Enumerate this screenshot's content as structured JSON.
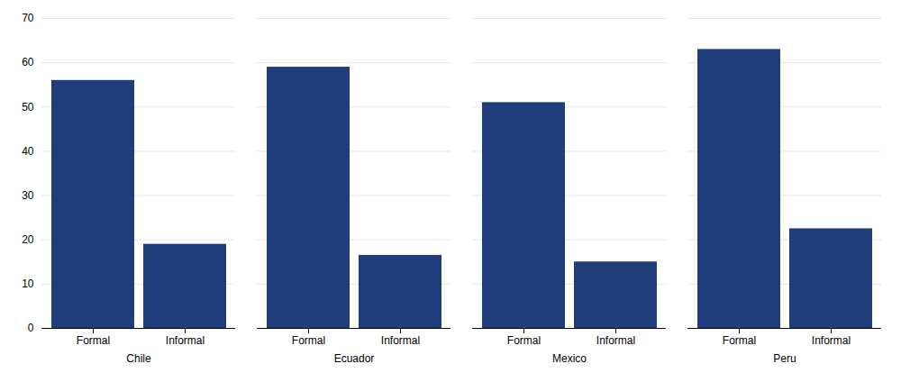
{
  "chart_data": {
    "type": "bar",
    "categories": [
      "Chile",
      "Ecuador",
      "Mexico",
      "Peru"
    ],
    "series": [
      {
        "name": "Formal",
        "values": [
          56.0,
          59.0,
          51.0,
          63.0
        ]
      },
      {
        "name": "Informal",
        "values": [
          19.0,
          16.5,
          15.0,
          22.5
        ]
      }
    ],
    "color": "#1f3d7a",
    "ylim": [
      0,
      70
    ],
    "yticks": [
      0,
      10,
      20,
      30,
      40,
      50,
      60,
      70
    ],
    "grid": true
  }
}
